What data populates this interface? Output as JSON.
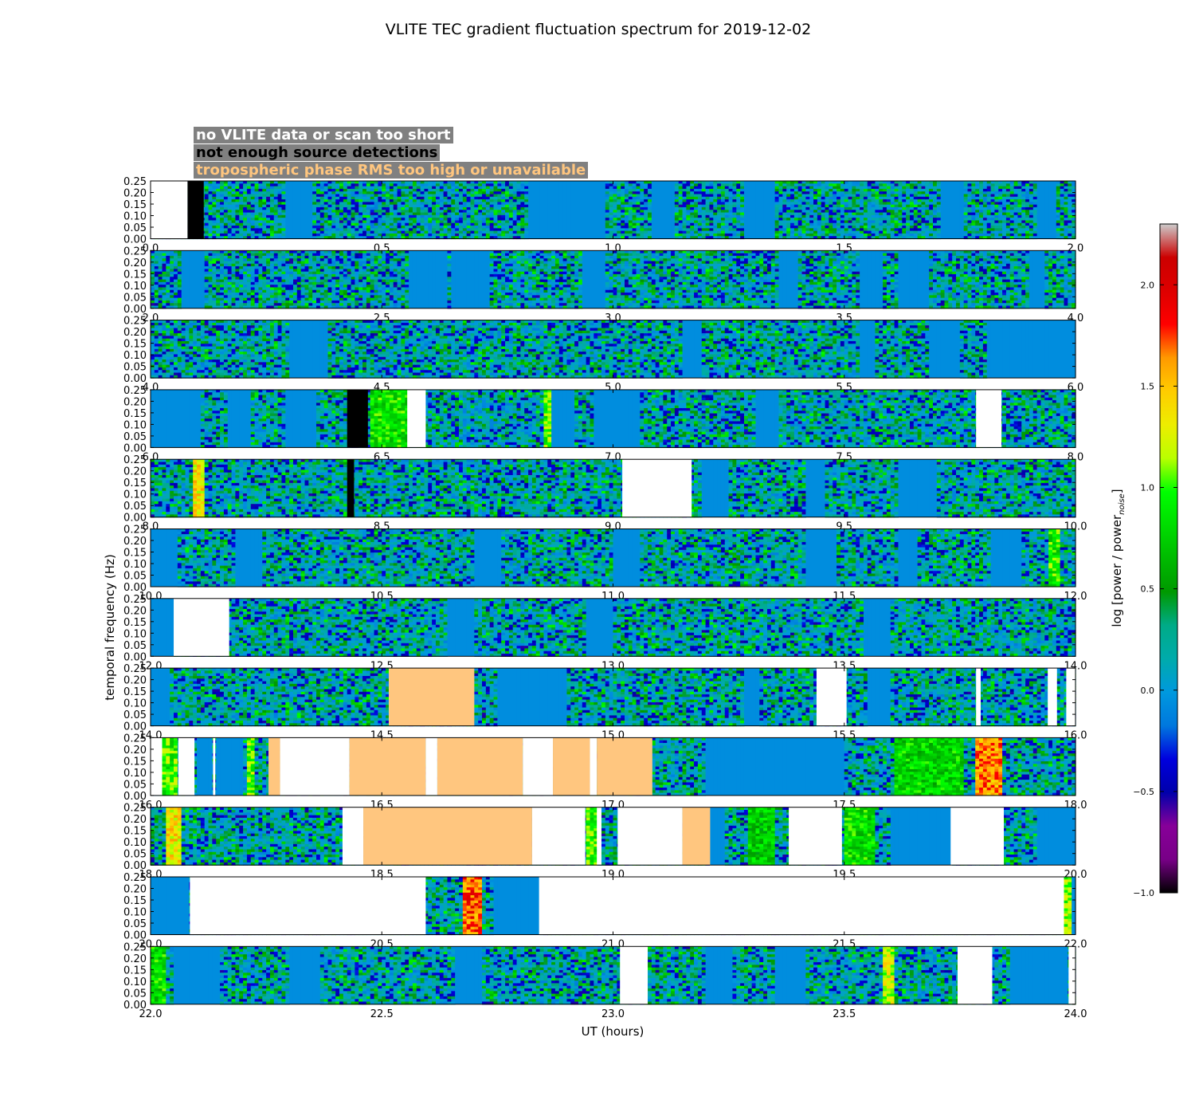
{
  "chart_data": {
    "type": "heatmap",
    "title": "VLITE TEC gradient fluctuation spectrum for 2019-12-02",
    "xlabel": "UT (hours)",
    "ylabel": "temporal frequency (Hz)",
    "colorbar_label": "log [power / power",
    "colorbar_label_subscript": "noise",
    "colorbar_label_suffix": "]",
    "colorbar_range": [
      -1.0,
      2.3
    ],
    "colorbar_ticks": [
      "−1.0",
      "−0.5",
      "0.0",
      "0.5",
      "1.0",
      "1.5",
      "2.0"
    ],
    "colorbar_tick_values": [
      -1.0,
      -0.5,
      0.0,
      0.5,
      1.0,
      1.5,
      2.0
    ],
    "colormap": "nipy_spectral",
    "ylim": [
      0,
      0.25
    ],
    "yticks": [
      "0.00",
      "0.05",
      "0.10",
      "0.15",
      "0.20",
      "0.25"
    ],
    "hours_per_panel": 2,
    "legend": [
      {
        "label": "no VLITE data or scan too short",
        "color": "#ffffff",
        "swatch": "#ffffff"
      },
      {
        "label": "not enough source detections",
        "color": "#000000",
        "swatch": "#000000"
      },
      {
        "label": "tropospheric phase RMS too high or unavailable",
        "color": "#ffc67f",
        "swatch": "#ffc67f"
      }
    ],
    "panels": [
      {
        "xlim": [
          0.0,
          2.0
        ],
        "xticks": [
          "0.0",
          "0.5",
          "1.0",
          "1.5",
          "2.0"
        ],
        "masks": [
          {
            "start": 0.0,
            "end": 0.08,
            "kind": "none"
          },
          {
            "start": 0.08,
            "end": 0.115,
            "kind": "det"
          }
        ],
        "flat": [
          [
            0.29,
            0.35
          ],
          [
            0.82,
            0.98
          ],
          [
            1.08,
            1.13
          ],
          [
            1.28,
            1.35
          ],
          [
            1.71,
            1.76
          ],
          [
            1.92,
            1.96
          ]
        ],
        "hot": []
      },
      {
        "xlim": [
          2.0,
          4.0
        ],
        "xticks": [
          "2.0",
          "2.5",
          "3.0",
          "3.5",
          "4.0"
        ],
        "masks": [],
        "flat": [
          [
            2.07,
            2.12
          ],
          [
            2.56,
            2.64
          ],
          [
            2.65,
            2.73
          ],
          [
            2.93,
            2.98
          ],
          [
            3.36,
            3.4
          ],
          [
            3.53,
            3.58
          ],
          [
            3.62,
            3.68
          ],
          [
            3.9,
            3.93
          ]
        ],
        "hot": []
      },
      {
        "xlim": [
          4.0,
          6.0
        ],
        "xticks": [
          "4.0",
          "4.5",
          "5.0",
          "5.5",
          "6.0"
        ],
        "masks": [],
        "flat": [
          [
            4.3,
            4.38
          ],
          [
            5.15,
            5.19
          ],
          [
            5.53,
            5.57
          ],
          [
            5.68,
            5.75
          ],
          [
            5.81,
            6.0
          ]
        ],
        "hot": []
      },
      {
        "xlim": [
          6.0,
          8.0
        ],
        "xticks": [
          "6.0",
          "6.5",
          "7.0",
          "7.5",
          "8.0"
        ],
        "masks": [
          {
            "start": 6.425,
            "end": 6.47,
            "kind": "det"
          },
          {
            "start": 6.555,
            "end": 6.595,
            "kind": "none"
          },
          {
            "start": 7.785,
            "end": 7.84,
            "kind": "none"
          }
        ],
        "flat": [
          [
            6.0,
            6.11
          ],
          [
            6.17,
            6.22
          ],
          [
            6.29,
            6.36
          ],
          [
            6.86,
            6.92
          ],
          [
            6.96,
            7.06
          ],
          [
            7.31,
            7.36
          ]
        ],
        "hot": [
          [
            6.475,
            6.56,
            0.82
          ],
          [
            6.85,
            6.87,
            1.0
          ]
        ]
      },
      {
        "xlim": [
          8.0,
          10.0
        ],
        "xticks": [
          "8.0",
          "8.5",
          "9.0",
          "9.5",
          "10.0"
        ],
        "masks": [
          {
            "start": 8.425,
            "end": 8.44,
            "kind": "det"
          },
          {
            "start": 9.02,
            "end": 9.17,
            "kind": "none"
          }
        ],
        "flat": [
          [
            9.19,
            9.25
          ],
          [
            9.42,
            9.46
          ],
          [
            9.62,
            9.7
          ]
        ],
        "hot": [
          [
            8.09,
            8.12,
            1.35
          ]
        ]
      },
      {
        "xlim": [
          10.0,
          12.0
        ],
        "xticks": [
          "10.0",
          "10.5",
          "11.0",
          "11.5",
          "12.0"
        ],
        "masks": [],
        "flat": [
          [
            10.0,
            10.06
          ],
          [
            10.18,
            10.24
          ],
          [
            10.7,
            10.76
          ],
          [
            11.0,
            11.06
          ],
          [
            11.42,
            11.48
          ],
          [
            11.62,
            11.66
          ],
          [
            11.82,
            11.88
          ]
        ],
        "hot": [
          [
            11.94,
            11.97,
            0.9
          ]
        ]
      },
      {
        "xlim": [
          12.0,
          14.0
        ],
        "xticks": [
          "12.0",
          "12.5",
          "13.0",
          "13.5",
          "14.0"
        ],
        "masks": [
          {
            "start": 10.05,
            "end": 10.17,
            "kind": "none"
          }
        ],
        "flat": [
          [
            10.0,
            10.05
          ],
          [
            10.64,
            10.7
          ],
          [
            10.94,
            11.0
          ],
          [
            11.54,
            11.6
          ]
        ],
        "hot": []
      },
      {
        "xlim": [
          14.0,
          16.0
        ],
        "xticks": [
          "14.0",
          "14.5",
          "15.0",
          "15.5",
          "16.0"
        ],
        "masks": [
          {
            "start": 12.515,
            "end": 12.7,
            "kind": "tropo"
          },
          {
            "start": 13.44,
            "end": 13.505,
            "kind": "none"
          },
          {
            "start": 13.785,
            "end": 13.795,
            "kind": "none"
          },
          {
            "start": 13.94,
            "end": 13.96,
            "kind": "none"
          },
          {
            "start": 13.98,
            "end": 14.0,
            "kind": "none"
          }
        ],
        "flat": [
          [
            12.0,
            12.04
          ],
          [
            12.75,
            12.9
          ],
          [
            13.28,
            13.32
          ],
          [
            13.55,
            13.6
          ]
        ],
        "hot": []
      },
      {
        "xlim": [
          16.0,
          18.0
        ],
        "xticks": [
          "16.0",
          "16.5",
          "17.0",
          "17.5",
          "18.0"
        ],
        "masks": [
          {
            "start": 14.0,
            "end": 14.025,
            "kind": "none"
          },
          {
            "start": 14.06,
            "end": 14.095,
            "kind": "none"
          },
          {
            "start": 14.135,
            "end": 14.14,
            "kind": "none"
          },
          {
            "start": 14.255,
            "end": 14.28,
            "kind": "tropo"
          },
          {
            "start": 14.28,
            "end": 14.43,
            "kind": "none"
          },
          {
            "start": 14.43,
            "end": 14.595,
            "kind": "tropo"
          },
          {
            "start": 14.595,
            "end": 14.62,
            "kind": "none"
          },
          {
            "start": 14.62,
            "end": 14.805,
            "kind": "tropo"
          },
          {
            "start": 14.805,
            "end": 14.87,
            "kind": "none"
          },
          {
            "start": 14.87,
            "end": 14.95,
            "kind": "tropo"
          },
          {
            "start": 14.95,
            "end": 14.965,
            "kind": "none"
          },
          {
            "start": 14.965,
            "end": 15.085,
            "kind": "tropo"
          }
        ],
        "flat": [
          [
            14.1,
            14.135
          ],
          [
            14.14,
            14.2
          ],
          [
            15.2,
            15.5
          ],
          [
            15.7,
            15.72
          ]
        ],
        "hot": [
          [
            14.025,
            14.06,
            0.95
          ],
          [
            14.205,
            14.225,
            1.05
          ],
          [
            15.61,
            15.76,
            0.75
          ],
          [
            15.785,
            15.845,
            1.6
          ]
        ]
      },
      {
        "xlim": [
          18.0,
          20.0
        ],
        "xticks": [
          "18.0",
          "18.5",
          "19.0",
          "19.5",
          "20.0"
        ],
        "masks": [
          {
            "start": 18.415,
            "end": 18.46,
            "kind": "none"
          },
          {
            "start": 18.46,
            "end": 18.825,
            "kind": "tropo"
          },
          {
            "start": 18.825,
            "end": 18.94,
            "kind": "none"
          },
          {
            "start": 18.965,
            "end": 18.975,
            "kind": "none"
          },
          {
            "start": 19.01,
            "end": 19.15,
            "kind": "none"
          },
          {
            "start": 19.15,
            "end": 19.21,
            "kind": "tropo"
          },
          {
            "start": 19.38,
            "end": 19.495,
            "kind": "none"
          },
          {
            "start": 19.73,
            "end": 19.845,
            "kind": "none"
          }
        ],
        "flat": [
          [
            19.21,
            19.24
          ],
          [
            19.6,
            19.73
          ],
          [
            19.92,
            20.0
          ]
        ],
        "hot": [
          [
            18.03,
            18.065,
            1.35
          ],
          [
            18.94,
            18.965,
            0.95
          ],
          [
            19.29,
            19.35,
            0.7
          ],
          [
            19.5,
            19.57,
            0.8
          ]
        ]
      },
      {
        "xlim": [
          20.0,
          22.0
        ],
        "xticks": [
          "20.0",
          "20.5",
          "21.0",
          "21.5",
          "22.0"
        ],
        "masks": [
          {
            "start": 20.085,
            "end": 20.595,
            "kind": "none"
          },
          {
            "start": 20.84,
            "end": 21.975,
            "kind": "none"
          }
        ],
        "flat": [
          [
            20.0,
            20.085
          ],
          [
            20.74,
            20.84
          ],
          [
            21.99,
            22.0
          ]
        ],
        "hot": [
          [
            20.675,
            20.72,
            1.7
          ],
          [
            21.975,
            21.99,
            1.1
          ]
        ]
      },
      {
        "xlim": [
          22.0,
          24.0
        ],
        "xticks": [
          "22.0",
          "22.5",
          "23.0",
          "23.5",
          "24.0"
        ],
        "masks": [
          {
            "start": 23.015,
            "end": 23.075,
            "kind": "none"
          },
          {
            "start": 23.745,
            "end": 23.82,
            "kind": "none"
          },
          {
            "start": 23.985,
            "end": 24.0,
            "kind": "none"
          }
        ],
        "flat": [
          [
            22.05,
            22.15
          ],
          [
            22.3,
            22.37
          ],
          [
            22.66,
            22.72
          ],
          [
            23.2,
            23.26
          ],
          [
            23.35,
            23.42
          ],
          [
            23.86,
            23.985
          ]
        ],
        "hot": [
          [
            22.0,
            22.03,
            0.8
          ],
          [
            23.58,
            23.61,
            1.2
          ]
        ]
      }
    ]
  }
}
